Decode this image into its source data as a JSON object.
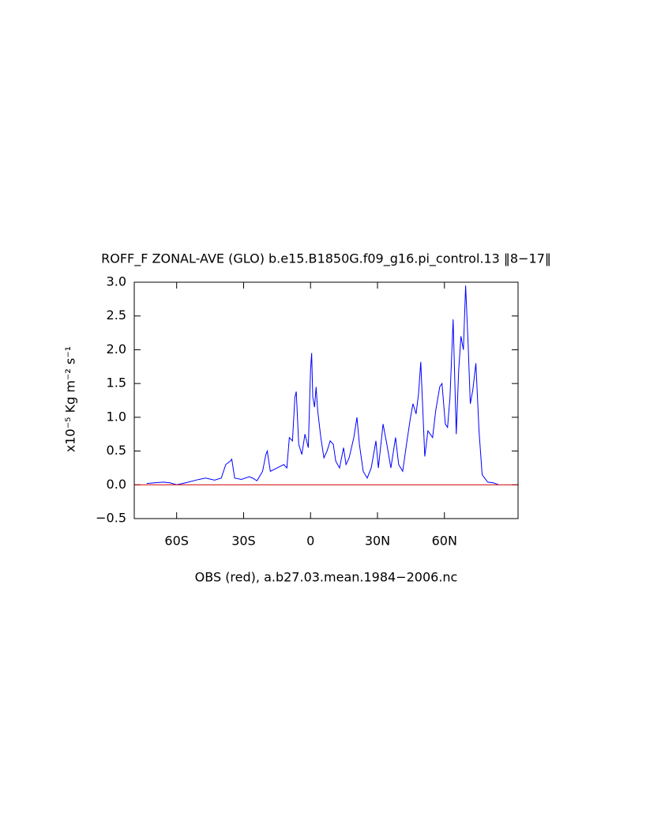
{
  "chart_data": {
    "type": "line",
    "title": "ROFF_F ZONAL-AVE (GLO) b.e15.B1850G.f09_g16.pi_control.13 ‖8−17‖",
    "y_label": "x10⁻⁵ Kg m⁻² s⁻¹",
    "x_label": "OBS (red), a.b27.03.mean.1984−2006.nc",
    "xlim": [
      -79,
      93
    ],
    "ylim": [
      -0.5,
      3.0
    ],
    "xticks": [
      {
        "value": -60,
        "label": "60S"
      },
      {
        "value": -30,
        "label": "30S"
      },
      0,
      {
        "value": 30,
        "label": "30N"
      },
      {
        "value": 60,
        "label": "60N"
      }
    ],
    "yticks": [
      {
        "value": -0.5,
        "label": "−0.5"
      },
      {
        "value": 0,
        "label": "0.0"
      },
      {
        "value": 0.5,
        "label": "0.5"
      },
      {
        "value": 1.0,
        "label": "1.0"
      },
      {
        "value": 1.5,
        "label": "1.5"
      },
      {
        "value": 2.0,
        "label": "2.0"
      },
      {
        "value": 2.5,
        "label": "2.5"
      },
      {
        "value": 3.0,
        "label": "3.0"
      }
    ],
    "series": [
      {
        "color": "#0000ff",
        "x": [
          -73.4,
          -70,
          -66,
          -63,
          -60,
          -56,
          -50,
          -47,
          -43,
          -40,
          -38,
          -36,
          -35.3,
          -34,
          -31,
          -27.5,
          -26,
          -24,
          -21.5,
          -20,
          -19.4,
          -18,
          -15,
          -12,
          -10.6,
          -9.5,
          -8.1,
          -7,
          -6.4,
          -5.3,
          -3.9,
          -2.5,
          -1,
          0,
          0.5,
          1,
          1.8,
          2.5,
          3.2,
          4.6,
          6,
          7.4,
          8.8,
          10.2,
          11.3,
          13,
          14.8,
          15.9,
          17.3,
          19.4,
          20.8,
          21.9,
          23.6,
          25.4,
          27.2,
          29.3,
          30.4,
          32.5,
          34.2,
          36,
          38.1,
          39.5,
          41.3,
          43,
          44.8,
          45.9,
          47.3,
          48.4,
          49.4,
          51.2,
          52.6,
          54.7,
          56.1,
          57.9,
          58.9,
          60.4,
          61.4,
          62.5,
          63.9,
          65.3,
          66.4,
          67.4,
          68.5,
          69.5,
          70.6,
          71.6,
          72.7,
          74.1,
          75.5,
          76.9,
          79.4,
          81.9,
          84.4
        ],
        "values": [
          0.02,
          0.03,
          0.04,
          0.03,
          0.0,
          0.03,
          0.08,
          0.1,
          0.07,
          0.1,
          0.3,
          0.35,
          0.38,
          0.1,
          0.08,
          0.12,
          0.1,
          0.06,
          0.2,
          0.45,
          0.5,
          0.2,
          0.25,
          0.3,
          0.25,
          0.7,
          0.65,
          1.3,
          1.38,
          0.6,
          0.45,
          0.75,
          0.55,
          1.7,
          1.95,
          1.3,
          1.15,
          1.45,
          1.1,
          0.7,
          0.4,
          0.5,
          0.65,
          0.6,
          0.35,
          0.25,
          0.55,
          0.3,
          0.4,
          0.7,
          1.0,
          0.6,
          0.2,
          0.1,
          0.25,
          0.65,
          0.25,
          0.9,
          0.6,
          0.25,
          0.7,
          0.3,
          0.2,
          0.6,
          1.0,
          1.2,
          1.05,
          1.35,
          1.82,
          0.42,
          0.8,
          0.7,
          1.1,
          1.45,
          1.5,
          0.9,
          0.85,
          1.3,
          2.45,
          0.75,
          1.7,
          2.2,
          2.0,
          2.95,
          2.1,
          1.2,
          1.4,
          1.8,
          0.8,
          0.15,
          0.04,
          0.03,
          0.0
        ]
      },
      {
        "color": "#cc0000",
        "x": [
          -79,
          93
        ],
        "values": [
          0,
          0
        ]
      }
    ]
  }
}
